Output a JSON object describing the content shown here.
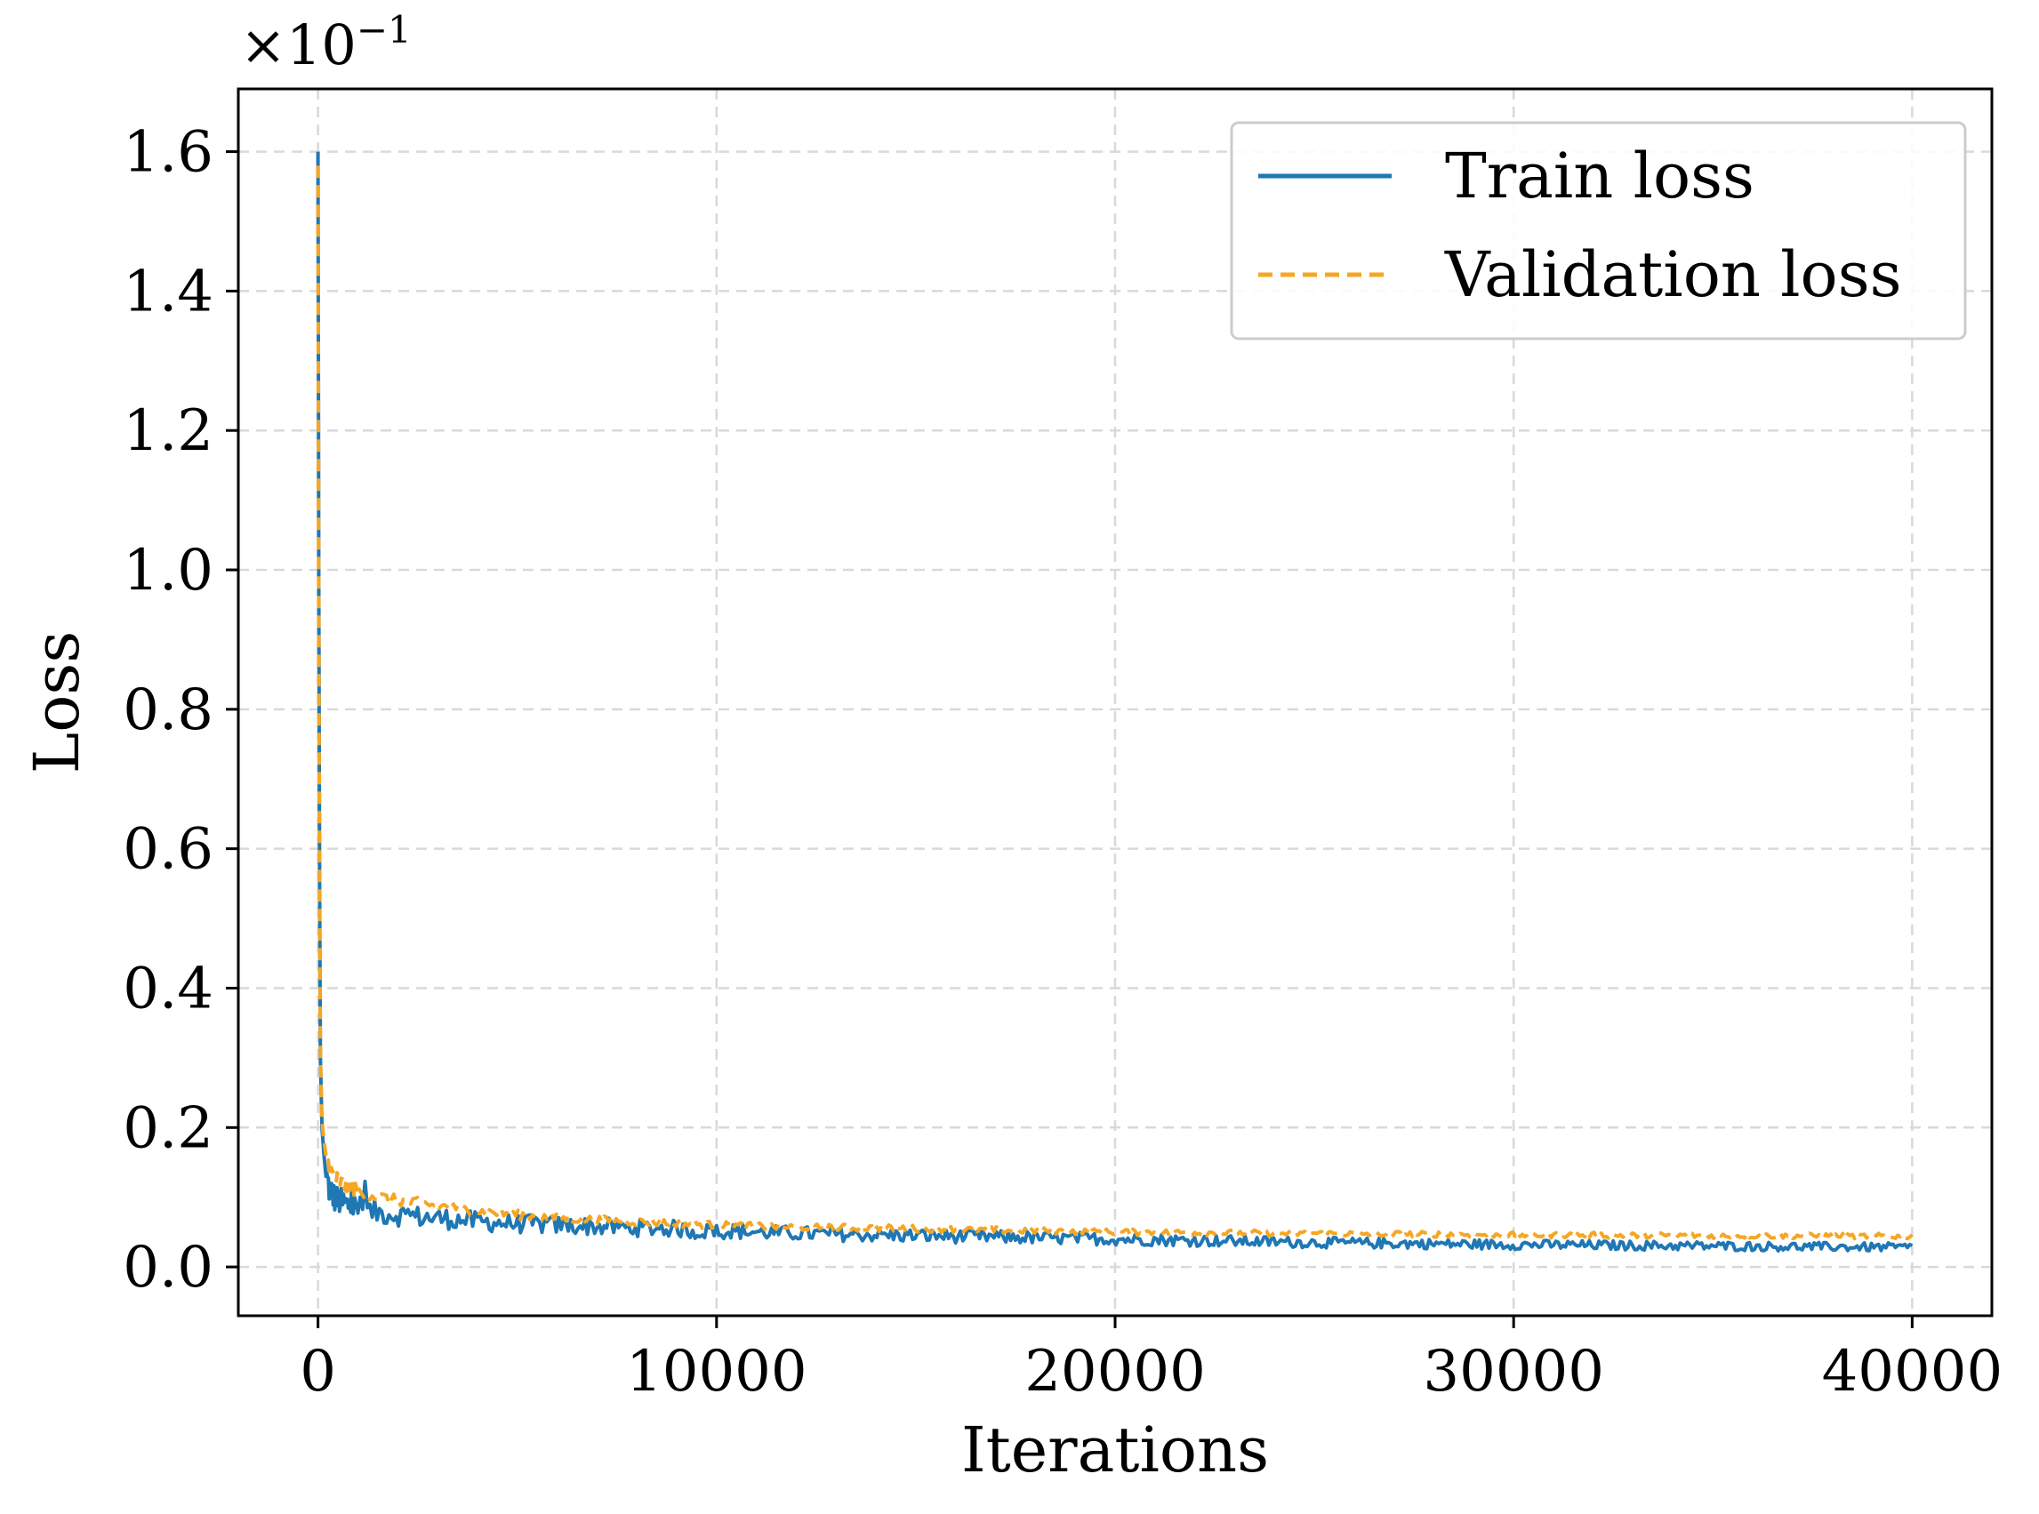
{
  "chart_data": {
    "type": "line",
    "title": "",
    "xlabel": "Iterations",
    "ylabel": "Loss",
    "y_multiplier": {
      "base": "×10",
      "exponent": "−1"
    },
    "xlim": [
      -2000,
      42000
    ],
    "ylim": [
      -0.07,
      1.69
    ],
    "x_ticks": [
      0,
      10000,
      20000,
      30000,
      40000
    ],
    "x_tick_labels": [
      "0",
      "10000",
      "20000",
      "30000",
      "40000"
    ],
    "y_ticks": [
      0.0,
      0.2,
      0.4,
      0.6,
      0.8,
      1.0,
      1.2,
      1.4,
      1.6
    ],
    "y_tick_labels": [
      "0.0",
      "0.2",
      "0.4",
      "0.6",
      "0.8",
      "1.0",
      "1.2",
      "1.4",
      "1.6"
    ],
    "grid": true,
    "legend_position": "top-right",
    "series": [
      {
        "name": "Train loss",
        "color": "#1f77b4",
        "style": "solid",
        "x": [
          0,
          30,
          60,
          100,
          150,
          200,
          300,
          400,
          500,
          700,
          1000,
          1200,
          1500,
          2000,
          2500,
          3000,
          3500,
          4000,
          5000,
          6000,
          7000,
          8000,
          9000,
          9500,
          10000,
          12000,
          15000,
          18000,
          20000,
          22000,
          25000,
          30000,
          35000,
          40000
        ],
        "values": [
          1.6,
          0.68,
          0.3,
          0.2,
          0.16,
          0.13,
          0.11,
          0.1,
          0.095,
          0.09,
          0.085,
          0.08,
          0.078,
          0.075,
          0.072,
          0.07,
          0.068,
          0.065,
          0.062,
          0.06,
          0.058,
          0.056,
          0.055,
          0.05,
          0.052,
          0.048,
          0.045,
          0.042,
          0.04,
          0.038,
          0.035,
          0.032,
          0.03,
          0.028
        ]
      },
      {
        "name": "Validation loss",
        "color": "#f5a623",
        "style": "dashed",
        "x": [
          0,
          30,
          60,
          100,
          150,
          200,
          300,
          400,
          500,
          700,
          1000,
          1500,
          2000,
          3000,
          4000,
          5000,
          6000,
          8000,
          10000,
          12000,
          15000,
          20000,
          25000,
          30000,
          35000,
          40000
        ],
        "values": [
          1.58,
          0.62,
          0.3,
          0.21,
          0.18,
          0.16,
          0.14,
          0.13,
          0.125,
          0.115,
          0.11,
          0.1,
          0.095,
          0.088,
          0.08,
          0.075,
          0.07,
          0.065,
          0.06,
          0.057,
          0.055,
          0.05,
          0.048,
          0.046,
          0.045,
          0.044
        ]
      }
    ]
  }
}
